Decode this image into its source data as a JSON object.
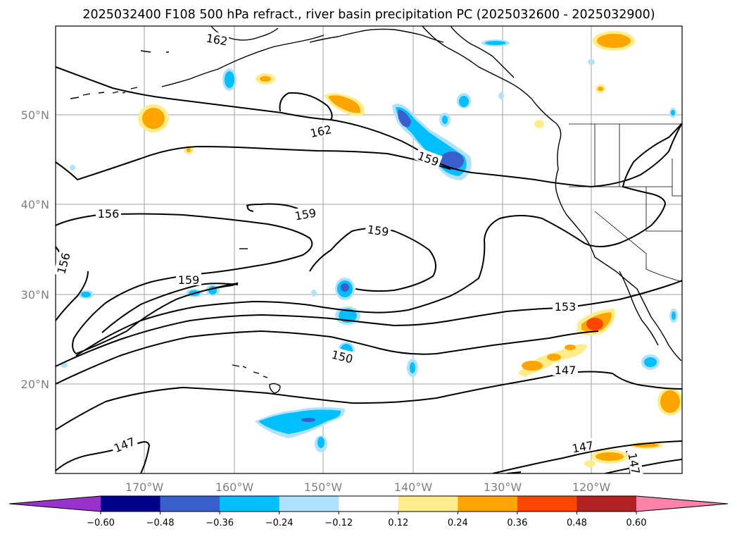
{
  "title": "2025032400 F108 500 hPa refract., river basin precipitation PC (2025032600 - 2025032900)",
  "axes": {
    "lat_labels": [
      "50°N",
      "40°N",
      "30°N",
      "20°N"
    ],
    "lon_labels": [
      "170°W",
      "160°W",
      "150°W",
      "140°W",
      "130°W",
      "120°W"
    ],
    "gridlines": true
  },
  "colorbar": {
    "ticks": [
      "−0.60",
      "−0.48",
      "−0.36",
      "−0.24",
      "−0.12",
      "0.12",
      "0.24",
      "0.36",
      "0.48",
      "0.60"
    ],
    "colors": [
      "#9932cc",
      "#00008b",
      "#3a5fcd",
      "#00bfff",
      "#b0e2ff",
      "#ffffff",
      "#ffec8b",
      "#ffa500",
      "#ff4500",
      "#b22222",
      "#ff82ab"
    ],
    "extend": "both"
  },
  "contour_labels": [
    {
      "text": "162"
    },
    {
      "text": "162"
    },
    {
      "text": "159"
    },
    {
      "text": "156"
    },
    {
      "text": "159"
    },
    {
      "text": "159"
    },
    {
      "text": "156"
    },
    {
      "text": "159"
    },
    {
      "text": "153"
    },
    {
      "text": "150"
    },
    {
      "text": "147"
    },
    {
      "text": "147"
    },
    {
      "text": "147"
    },
    {
      "text": "147"
    }
  ]
}
